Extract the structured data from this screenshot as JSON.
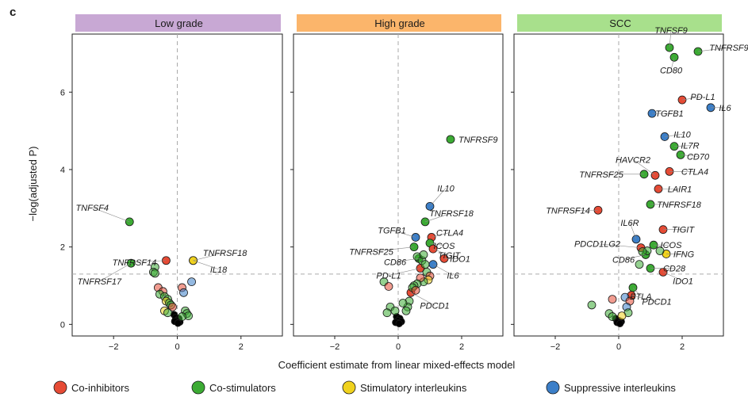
{
  "panel_letter": "c",
  "x_axis_title": "Coefficient estimate from linear mixed-effects model",
  "y_axis_title": "−log(adjusted P)",
  "legend": [
    {
      "label": "Co-inhibitors",
      "color": "#e64b35"
    },
    {
      "label": "Co-stimulators",
      "color": "#3cab34"
    },
    {
      "label": "Stimulatory interleukins",
      "color": "#f0d21e"
    },
    {
      "label": "Suppressive interleukins",
      "color": "#3c7fc8"
    }
  ],
  "colors": {
    "Co-inhibitors": "#e64b35",
    "Co-stimulators": "#3cab34",
    "Stimulatory interleukins": "#f0d21e",
    "Suppressive interleukins": "#3c7fc8",
    "Other": "#000000"
  },
  "chart_data": [
    {
      "type": "scatter",
      "title": "Low grade",
      "strip_color": "#c8a8d4",
      "xlim": [
        -3.3,
        3.3
      ],
      "ylim": [
        -0.3,
        7.5
      ],
      "x_ticks": [
        -2,
        0,
        2
      ],
      "y_ticks": [
        0,
        2,
        4,
        6
      ],
      "x_tick_labels": [
        "−2",
        "0",
        "2"
      ],
      "y_tick_labels": [
        "0",
        "2",
        "4",
        "6"
      ],
      "ref_x": 0,
      "ref_y": 1.3,
      "points": [
        {
          "label": "TNFSF4",
          "x": -1.5,
          "y": 2.65,
          "cat": "Co-stimulators"
        },
        {
          "label": "TNFRSF14",
          "x": -0.35,
          "y": 1.65,
          "cat": "Co-inhibitors"
        },
        {
          "label": "TNFRSF18",
          "x": 0.5,
          "y": 1.65,
          "cat": "Co-stimulators"
        },
        {
          "label": "IL18",
          "x": 0.5,
          "y": 1.65,
          "cat": "Stimulatory interleukins"
        },
        {
          "label": "TNFRSF17",
          "x": -1.45,
          "y": 1.58,
          "cat": "Co-stimulators"
        },
        {
          "label": "",
          "x": -0.7,
          "y": 1.48,
          "cat": "Co-stimulators"
        },
        {
          "label": "",
          "x": -0.75,
          "y": 1.35,
          "cat": "Co-stimulators"
        },
        {
          "label": "",
          "x": -0.7,
          "y": 1.32,
          "cat": "Co-stimulators"
        },
        {
          "label": "",
          "x": -0.6,
          "y": 0.95,
          "cat": "Co-inhibitors"
        },
        {
          "label": "",
          "x": -0.45,
          "y": 0.85,
          "cat": "Co-inhibitors"
        },
        {
          "label": "",
          "x": -0.55,
          "y": 0.78,
          "cat": "Co-stimulators"
        },
        {
          "label": "",
          "x": -0.4,
          "y": 0.72,
          "cat": "Co-stimulators"
        },
        {
          "label": "",
          "x": -0.3,
          "y": 0.65,
          "cat": "Co-stimulators"
        },
        {
          "label": "",
          "x": -0.35,
          "y": 0.6,
          "cat": "Stimulatory interleukins"
        },
        {
          "label": "",
          "x": -0.25,
          "y": 0.55,
          "cat": "Co-stimulators"
        },
        {
          "label": "",
          "x": -0.2,
          "y": 0.5,
          "cat": "Co-stimulators"
        },
        {
          "label": "",
          "x": -0.15,
          "y": 0.45,
          "cat": "Co-inhibitors"
        },
        {
          "label": "",
          "x": -0.4,
          "y": 0.35,
          "cat": "Stimulatory interleukins"
        },
        {
          "label": "",
          "x": -0.3,
          "y": 0.3,
          "cat": "Co-stimulators"
        },
        {
          "label": "",
          "x": 0.15,
          "y": 0.95,
          "cat": "Co-inhibitors"
        },
        {
          "label": "",
          "x": 0.2,
          "y": 0.82,
          "cat": "Suppressive interleukins"
        },
        {
          "label": "",
          "x": 0.45,
          "y": 1.1,
          "cat": "Suppressive interleukins"
        },
        {
          "label": "",
          "x": 0.25,
          "y": 0.35,
          "cat": "Co-stimulators"
        },
        {
          "label": "",
          "x": 0.3,
          "y": 0.28,
          "cat": "Co-stimulators"
        },
        {
          "label": "",
          "x": 0.35,
          "y": 0.22,
          "cat": "Co-stimulators"
        },
        {
          "label": "",
          "x": 0.15,
          "y": 0.2,
          "cat": "Co-stimulators"
        },
        {
          "label": "",
          "x": -0.1,
          "y": 0.25,
          "cat": "Other"
        },
        {
          "label": "",
          "x": -0.05,
          "y": 0.18,
          "cat": "Other"
        },
        {
          "label": "",
          "x": 0.05,
          "y": 0.15,
          "cat": "Other"
        },
        {
          "label": "",
          "x": 0.0,
          "y": 0.1,
          "cat": "Other"
        },
        {
          "label": "",
          "x": -0.08,
          "y": 0.08,
          "cat": "Other"
        },
        {
          "label": "",
          "x": 0.08,
          "y": 0.06,
          "cat": "Other"
        },
        {
          "label": "",
          "x": 0.02,
          "y": 0.03,
          "cat": "Other"
        }
      ]
    },
    {
      "type": "scatter",
      "title": "High grade",
      "strip_color": "#fbb56b",
      "xlim": [
        -3.3,
        3.3
      ],
      "ylim": [
        -0.3,
        7.5
      ],
      "x_ticks": [
        -2,
        0,
        2
      ],
      "y_ticks": [
        0,
        2,
        4,
        6
      ],
      "x_tick_labels": [
        "−2",
        "0",
        "2"
      ],
      "y_tick_labels": [
        "0",
        "2",
        "4",
        "6"
      ],
      "ref_x": 0,
      "ref_y": 1.3,
      "points": [
        {
          "label": "TNFRSF9",
          "x": 1.65,
          "y": 4.78,
          "cat": "Co-stimulators"
        },
        {
          "label": "IL10",
          "x": 1.0,
          "y": 3.05,
          "cat": "Suppressive interleukins"
        },
        {
          "label": "TNFRSF18",
          "x": 0.85,
          "y": 2.65,
          "cat": "Co-stimulators"
        },
        {
          "label": "TGFB1",
          "x": 0.55,
          "y": 2.25,
          "cat": "Suppressive interleukins"
        },
        {
          "label": "CTLA4",
          "x": 1.05,
          "y": 2.25,
          "cat": "Co-inhibitors"
        },
        {
          "label": "ICOS",
          "x": 1.0,
          "y": 2.1,
          "cat": "Co-stimulators"
        },
        {
          "label": "TIGIT",
          "x": 1.1,
          "y": 1.95,
          "cat": "Co-inhibitors"
        },
        {
          "label": "TNFRSF25",
          "x": 0.5,
          "y": 2.0,
          "cat": "Co-stimulators"
        },
        {
          "label": "CD86",
          "x": 0.65,
          "y": 1.7,
          "cat": "Co-stimulators"
        },
        {
          "label": "IDO1",
          "x": 1.45,
          "y": 1.7,
          "cat": "Co-inhibitors"
        },
        {
          "label": "PD-L1",
          "x": 0.7,
          "y": 1.45,
          "cat": "Co-inhibitors"
        },
        {
          "label": "IL6",
          "x": 1.1,
          "y": 1.55,
          "cat": "Suppressive interleukins"
        },
        {
          "label": "PDCD1",
          "x": 0.4,
          "y": 0.82,
          "cat": "Co-inhibitors"
        },
        {
          "label": "",
          "x": 0.6,
          "y": 1.75,
          "cat": "Co-stimulators"
        },
        {
          "label": "",
          "x": 0.75,
          "y": 1.65,
          "cat": "Co-stimulators"
        },
        {
          "label": "",
          "x": 0.8,
          "y": 1.8,
          "cat": "Co-stimulators"
        },
        {
          "label": "",
          "x": 0.85,
          "y": 1.55,
          "cat": "Co-stimulators"
        },
        {
          "label": "",
          "x": 0.9,
          "y": 1.35,
          "cat": "Co-stimulators"
        },
        {
          "label": "",
          "x": 1.0,
          "y": 1.25,
          "cat": "Co-inhibitors"
        },
        {
          "label": "",
          "x": 0.95,
          "y": 1.15,
          "cat": "Stimulatory interleukins"
        },
        {
          "label": "",
          "x": 0.8,
          "y": 1.1,
          "cat": "Co-stimulators"
        },
        {
          "label": "",
          "x": 0.7,
          "y": 1.2,
          "cat": "Co-inhibitors"
        },
        {
          "label": "",
          "x": 0.6,
          "y": 1.05,
          "cat": "Co-stimulators"
        },
        {
          "label": "",
          "x": 0.5,
          "y": 1.0,
          "cat": "Co-stimulators"
        },
        {
          "label": "",
          "x": 0.45,
          "y": 0.95,
          "cat": "Co-stimulators"
        },
        {
          "label": "",
          "x": 0.55,
          "y": 0.88,
          "cat": "Co-inhibitors"
        },
        {
          "label": "",
          "x": 0.35,
          "y": 0.6,
          "cat": "Co-stimulators"
        },
        {
          "label": "",
          "x": 0.3,
          "y": 0.45,
          "cat": "Co-stimulators"
        },
        {
          "label": "",
          "x": 0.25,
          "y": 0.35,
          "cat": "Co-stimulators"
        },
        {
          "label": "",
          "x": -0.45,
          "y": 1.1,
          "cat": "Co-stimulators"
        },
        {
          "label": "",
          "x": -0.3,
          "y": 0.98,
          "cat": "Co-inhibitors"
        },
        {
          "label": "",
          "x": -0.25,
          "y": 0.45,
          "cat": "Co-stimulators"
        },
        {
          "label": "",
          "x": -0.35,
          "y": 0.3,
          "cat": "Co-stimulators"
        },
        {
          "label": "",
          "x": -0.1,
          "y": 0.35,
          "cat": "Co-stimulators"
        },
        {
          "label": "",
          "x": 0.15,
          "y": 0.55,
          "cat": "Co-stimulators"
        },
        {
          "label": "",
          "x": -0.05,
          "y": 0.2,
          "cat": "Other"
        },
        {
          "label": "",
          "x": 0.05,
          "y": 0.15,
          "cat": "Other"
        },
        {
          "label": "",
          "x": 0.0,
          "y": 0.1,
          "cat": "Other"
        },
        {
          "label": "",
          "x": 0.1,
          "y": 0.07,
          "cat": "Other"
        },
        {
          "label": "",
          "x": -0.08,
          "y": 0.05,
          "cat": "Other"
        },
        {
          "label": "",
          "x": 0.03,
          "y": 0.02,
          "cat": "Other"
        }
      ]
    },
    {
      "type": "scatter",
      "title": "SCC",
      "strip_color": "#a8e08c",
      "xlim": [
        -3.3,
        3.3
      ],
      "ylim": [
        -0.3,
        7.5
      ],
      "x_ticks": [
        -2,
        0,
        2
      ],
      "y_ticks": [
        0,
        2,
        4,
        6
      ],
      "x_tick_labels": [
        "−2",
        "0",
        "2"
      ],
      "y_tick_labels": [
        "0",
        "2",
        "4",
        "6"
      ],
      "ref_x": 0,
      "ref_y": 1.3,
      "points": [
        {
          "label": "TNFSF9",
          "x": 1.6,
          "y": 7.15,
          "cat": "Co-stimulators"
        },
        {
          "label": "TNFRSF9",
          "x": 2.5,
          "y": 7.05,
          "cat": "Co-stimulators"
        },
        {
          "label": "CD80",
          "x": 1.75,
          "y": 6.9,
          "cat": "Co-stimulators"
        },
        {
          "label": "PD-L1",
          "x": 2.0,
          "y": 5.8,
          "cat": "Co-inhibitors"
        },
        {
          "label": "IL6",
          "x": 2.9,
          "y": 5.6,
          "cat": "Suppressive interleukins"
        },
        {
          "label": "TGFB1",
          "x": 1.05,
          "y": 5.45,
          "cat": "Suppressive interleukins"
        },
        {
          "label": "IL10",
          "x": 1.45,
          "y": 4.85,
          "cat": "Suppressive interleukins"
        },
        {
          "label": "IL7R",
          "x": 1.75,
          "y": 4.6,
          "cat": "Co-stimulators"
        },
        {
          "label": "CD70",
          "x": 1.95,
          "y": 4.38,
          "cat": "Co-stimulators"
        },
        {
          "label": "CTLA4",
          "x": 1.6,
          "y": 3.95,
          "cat": "Co-inhibitors"
        },
        {
          "label": "HAVCR2",
          "x": 1.15,
          "y": 3.85,
          "cat": "Co-inhibitors"
        },
        {
          "label": "TNFRSF25",
          "x": 0.8,
          "y": 3.88,
          "cat": "Co-stimulators"
        },
        {
          "label": "LAIR1",
          "x": 1.25,
          "y": 3.5,
          "cat": "Co-inhibitors"
        },
        {
          "label": "TNFRSF18",
          "x": 1.0,
          "y": 3.1,
          "cat": "Co-stimulators"
        },
        {
          "label": "TNFRSF14",
          "x": -0.65,
          "y": 2.95,
          "cat": "Co-inhibitors"
        },
        {
          "label": "TIGIT",
          "x": 1.4,
          "y": 2.45,
          "cat": "Co-inhibitors"
        },
        {
          "label": "IL6R",
          "x": 0.55,
          "y": 2.2,
          "cat": "Suppressive interleukins"
        },
        {
          "label": "ICOS",
          "x": 1.1,
          "y": 2.05,
          "cat": "Co-stimulators"
        },
        {
          "label": "PDCD1LG2",
          "x": 0.7,
          "y": 1.98,
          "cat": "Co-inhibitors"
        },
        {
          "label": "IFNG",
          "x": 1.5,
          "y": 1.82,
          "cat": "Stimulatory interleukins"
        },
        {
          "label": "CD86",
          "x": 0.85,
          "y": 1.8,
          "cat": "Co-stimulators"
        },
        {
          "label": "CD28",
          "x": 1.0,
          "y": 1.45,
          "cat": "Co-stimulators"
        },
        {
          "label": "IDO1",
          "x": 1.4,
          "y": 1.35,
          "cat": "Co-inhibitors"
        },
        {
          "label": "BTLA",
          "x": 0.45,
          "y": 0.95,
          "cat": "Co-stimulators"
        },
        {
          "label": "PDCD1",
          "x": 0.4,
          "y": 0.75,
          "cat": "Co-inhibitors"
        },
        {
          "label": "",
          "x": 0.9,
          "y": 1.9,
          "cat": "Co-stimulators"
        },
        {
          "label": "",
          "x": 0.75,
          "y": 1.88,
          "cat": "Co-stimulators"
        },
        {
          "label": "",
          "x": 1.3,
          "y": 1.9,
          "cat": "Co-stimulators"
        },
        {
          "label": "",
          "x": 0.65,
          "y": 1.55,
          "cat": "Co-stimulators"
        },
        {
          "label": "",
          "x": -0.85,
          "y": 0.5,
          "cat": "Co-stimulators"
        },
        {
          "label": "",
          "x": -0.2,
          "y": 0.65,
          "cat": "Co-inhibitors"
        },
        {
          "label": "",
          "x": 0.2,
          "y": 0.7,
          "cat": "Suppressive interleukins"
        },
        {
          "label": "",
          "x": 0.35,
          "y": 0.6,
          "cat": "Co-inhibitors"
        },
        {
          "label": "",
          "x": 0.25,
          "y": 0.45,
          "cat": "Suppressive interleukins"
        },
        {
          "label": "",
          "x": 0.3,
          "y": 0.3,
          "cat": "Co-stimulators"
        },
        {
          "label": "",
          "x": -0.3,
          "y": 0.28,
          "cat": "Co-stimulators"
        },
        {
          "label": "",
          "x": -0.2,
          "y": 0.2,
          "cat": "Co-stimulators"
        },
        {
          "label": "",
          "x": 0.1,
          "y": 0.22,
          "cat": "Stimulatory interleukins"
        },
        {
          "label": "",
          "x": -0.1,
          "y": 0.15,
          "cat": "Other"
        },
        {
          "label": "",
          "x": 0.0,
          "y": 0.1,
          "cat": "Other"
        },
        {
          "label": "",
          "x": 0.08,
          "y": 0.07,
          "cat": "Other"
        },
        {
          "label": "",
          "x": -0.05,
          "y": 0.05,
          "cat": "Other"
        },
        {
          "label": "",
          "x": 0.04,
          "y": 0.02,
          "cat": "Other"
        }
      ]
    }
  ]
}
